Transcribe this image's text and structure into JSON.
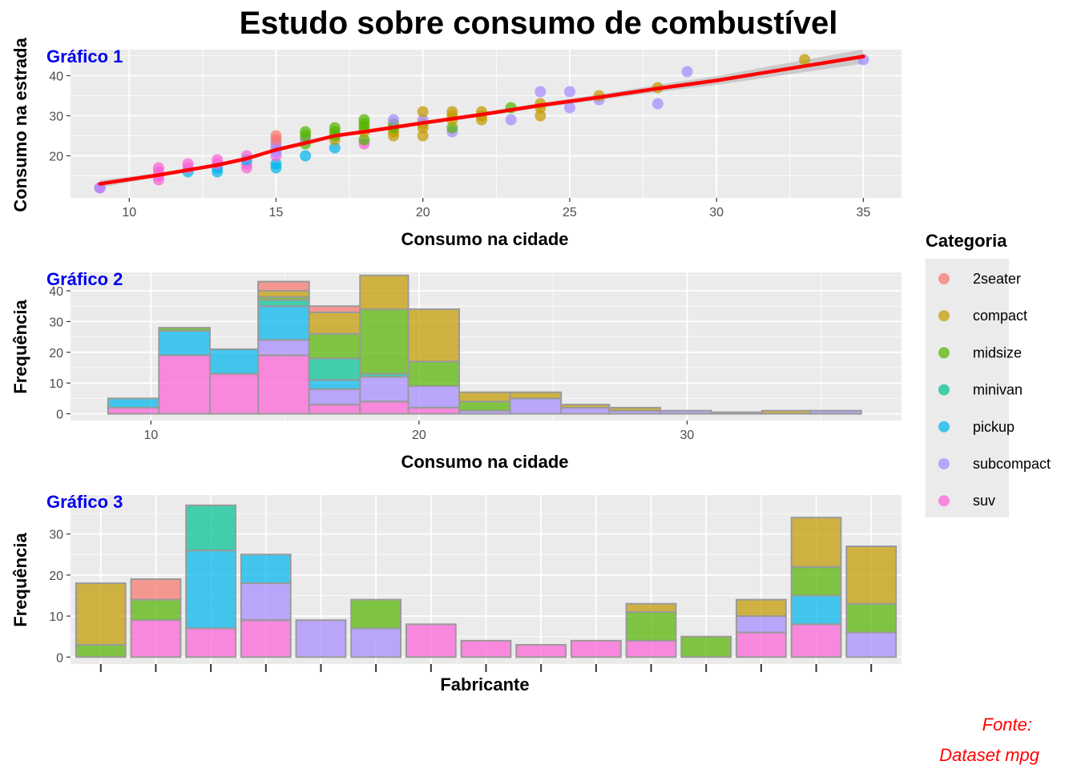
{
  "title": "Estudo sobre consumo de combustível",
  "caption": [
    "Fonte:",
    "Dataset mpg"
  ],
  "legend": {
    "title": "Categoria",
    "items": [
      {
        "label": "2seater",
        "color": "#F8766D"
      },
      {
        "label": "compact",
        "color": "#C49A00"
      },
      {
        "label": "midsize",
        "color": "#53B400"
      },
      {
        "label": "minivan",
        "color": "#00C094"
      },
      {
        "label": "pickup",
        "color": "#00B6EB"
      },
      {
        "label": "subcompact",
        "color": "#A58AFF"
      },
      {
        "label": "suv",
        "color": "#FB61D7"
      }
    ]
  },
  "chart_data": [
    {
      "type": "scatter",
      "panel_label": "Gráfico 1",
      "xlabel": "Consumo na cidade",
      "ylabel": "Consumo na estrada",
      "xlim": [
        8,
        36.3
      ],
      "ylim": [
        9.5,
        46.5
      ],
      "xticks": [
        10,
        15,
        20,
        25,
        30,
        35
      ],
      "yticks": [
        20,
        30,
        40
      ],
      "grid": true,
      "points": [
        [
          9,
          12,
          "suv"
        ],
        [
          9,
          12,
          "subcompact"
        ],
        [
          11,
          14,
          "suv"
        ],
        [
          11,
          15,
          "suv"
        ],
        [
          11,
          16,
          "suv"
        ],
        [
          11,
          17,
          "suv"
        ],
        [
          12,
          16,
          "pickup"
        ],
        [
          12,
          17,
          "suv"
        ],
        [
          12,
          18,
          "suv"
        ],
        [
          13,
          16,
          "pickup"
        ],
        [
          13,
          17,
          "pickup"
        ],
        [
          13,
          18,
          "suv"
        ],
        [
          13,
          19,
          "suv"
        ],
        [
          14,
          17,
          "suv"
        ],
        [
          14,
          18,
          "suv"
        ],
        [
          14,
          19,
          "pickup"
        ],
        [
          14,
          20,
          "suv"
        ],
        [
          15,
          17,
          "pickup"
        ],
        [
          15,
          18,
          "pickup"
        ],
        [
          15,
          20,
          "suv"
        ],
        [
          15,
          21,
          "subcompact"
        ],
        [
          15,
          22,
          "subcompact"
        ],
        [
          15,
          23,
          "subcompact"
        ],
        [
          15,
          24,
          "2seater"
        ],
        [
          15,
          25,
          "2seater"
        ],
        [
          16,
          20,
          "pickup"
        ],
        [
          16,
          23,
          "midsize"
        ],
        [
          16,
          24,
          "subcompact"
        ],
        [
          16,
          25,
          "midsize"
        ],
        [
          16,
          26,
          "midsize"
        ],
        [
          17,
          22,
          "pickup"
        ],
        [
          17,
          24,
          "compact"
        ],
        [
          17,
          25,
          "midsize"
        ],
        [
          17,
          26,
          "midsize"
        ],
        [
          17,
          27,
          "midsize"
        ],
        [
          18,
          23,
          "suv"
        ],
        [
          18,
          24,
          "midsize"
        ],
        [
          18,
          26,
          "compact"
        ],
        [
          18,
          27,
          "midsize"
        ],
        [
          18,
          28,
          "midsize"
        ],
        [
          18,
          29,
          "midsize"
        ],
        [
          19,
          25,
          "compact"
        ],
        [
          19,
          26,
          "compact"
        ],
        [
          19,
          27,
          "midsize"
        ],
        [
          19,
          28,
          "midsize"
        ],
        [
          19,
          29,
          "subcompact"
        ],
        [
          20,
          25,
          "compact"
        ],
        [
          20,
          27,
          "compact"
        ],
        [
          20,
          28,
          "compact"
        ],
        [
          20,
          29,
          "subcompact"
        ],
        [
          20,
          31,
          "compact"
        ],
        [
          21,
          26,
          "subcompact"
        ],
        [
          21,
          27,
          "midsize"
        ],
        [
          21,
          29,
          "compact"
        ],
        [
          21,
          30,
          "compact"
        ],
        [
          21,
          31,
          "compact"
        ],
        [
          22,
          29,
          "compact"
        ],
        [
          22,
          30,
          "compact"
        ],
        [
          22,
          31,
          "compact"
        ],
        [
          23,
          29,
          "subcompact"
        ],
        [
          23,
          32,
          "midsize"
        ],
        [
          24,
          30,
          "compact"
        ],
        [
          24,
          32,
          "compact"
        ],
        [
          24,
          33,
          "compact"
        ],
        [
          24,
          36,
          "subcompact"
        ],
        [
          25,
          32,
          "subcompact"
        ],
        [
          25,
          36,
          "subcompact"
        ],
        [
          26,
          34,
          "subcompact"
        ],
        [
          26,
          35,
          "compact"
        ],
        [
          28,
          33,
          "subcompact"
        ],
        [
          28,
          37,
          "compact"
        ],
        [
          29,
          41,
          "subcompact"
        ],
        [
          33,
          44,
          "compact"
        ],
        [
          35,
          44,
          "subcompact"
        ]
      ],
      "smooth_line": {
        "color": "#FF0000",
        "x": [
          9,
          11,
          13,
          14,
          15,
          16,
          17,
          18,
          20,
          22,
          24,
          26,
          28,
          30,
          35
        ],
        "y": [
          13,
          15.2,
          17.7,
          19.3,
          21.5,
          23.2,
          25,
          26,
          28.2,
          30.3,
          32.6,
          34.6,
          36.8,
          38.8,
          44.8
        ],
        "band_halfwidth": [
          0.9,
          0.5,
          0.4,
          0.4,
          0.4,
          0.4,
          0.4,
          0.4,
          0.4,
          0.5,
          0.6,
          0.7,
          0.9,
          1.1,
          1.8
        ]
      }
    },
    {
      "type": "bar",
      "stacked": true,
      "panel_label": "Gráfico 2",
      "xlabel": "Consumo na cidade",
      "ylabel": "Frequência",
      "xlim": [
        7.0,
        38.0
      ],
      "ylim": [
        -2.2,
        46
      ],
      "xticks": [
        10,
        20,
        30
      ],
      "yticks": [
        0,
        10,
        20,
        30,
        40
      ],
      "grid": true,
      "bin_edges": [
        8.4,
        10.3,
        12.2,
        14.0,
        15.9,
        17.8,
        19.6,
        21.5,
        23.4,
        25.3,
        27.1,
        29.0,
        30.9,
        32.8,
        34.6,
        36.5
      ],
      "stack_order": [
        "suv",
        "subcompact",
        "pickup",
        "minivan",
        "midsize",
        "compact",
        "2seater"
      ],
      "bins": [
        {
          "suv": 2,
          "pickup": 3
        },
        {
          "suv": 19,
          "pickup": 8,
          "midsize": 1
        },
        {
          "suv": 13,
          "pickup": 8
        },
        {
          "suv": 19,
          "subcompact": 5,
          "pickup": 11,
          "minivan": 2,
          "midsize": 1,
          "compact": 2,
          "2seater": 3
        },
        {
          "suv": 3,
          "subcompact": 5,
          "pickup": 3,
          "minivan": 7,
          "midsize": 8,
          "compact": 7,
          "2seater": 2
        },
        {
          "suv": 4,
          "subcompact": 8,
          "minivan": 1,
          "midsize": 21,
          "compact": 11
        },
        {
          "suv": 2,
          "subcompact": 7,
          "midsize": 8,
          "compact": 17
        },
        {
          "subcompact": 1,
          "midsize": 3,
          "compact": 3
        },
        {
          "subcompact": 5,
          "compact": 2
        },
        {
          "subcompact": 2,
          "compact": 1
        },
        {
          "subcompact": 1,
          "compact": 1
        },
        {
          "subcompact": 1
        },
        {
          "subcompact": 0.5
        },
        {
          "compact": 1
        },
        {
          "subcompact": 1
        }
      ]
    },
    {
      "type": "bar",
      "stacked": true,
      "panel_label": "Gráfico 3",
      "xlabel": "Fabricante",
      "ylabel": "Frequência",
      "ylim": [
        -1.7,
        39.5
      ],
      "yticks": [
        0,
        10,
        20,
        30
      ],
      "grid": true,
      "stack_order": [
        "suv",
        "subcompact",
        "pickup",
        "minivan",
        "midsize",
        "compact",
        "2seater"
      ],
      "bars": [
        {
          "midsize": 3,
          "compact": 15
        },
        {
          "suv": 9,
          "midsize": 5,
          "2seater": 5
        },
        {
          "suv": 7,
          "pickup": 19,
          "minivan": 11
        },
        {
          "suv": 9,
          "subcompact": 9,
          "pickup": 7
        },
        {
          "subcompact": 9
        },
        {
          "subcompact": 7,
          "midsize": 7
        },
        {
          "suv": 8
        },
        {
          "suv": 4
        },
        {
          "suv": 3
        },
        {
          "suv": 4
        },
        {
          "suv": 4,
          "midsize": 7,
          "compact": 2
        },
        {
          "midsize": 5
        },
        {
          "suv": 6,
          "subcompact": 4,
          "compact": 4
        },
        {
          "suv": 8,
          "pickup": 7,
          "midsize": 7,
          "compact": 12
        },
        {
          "subcompact": 6,
          "midsize": 7,
          "compact": 14
        }
      ]
    }
  ]
}
